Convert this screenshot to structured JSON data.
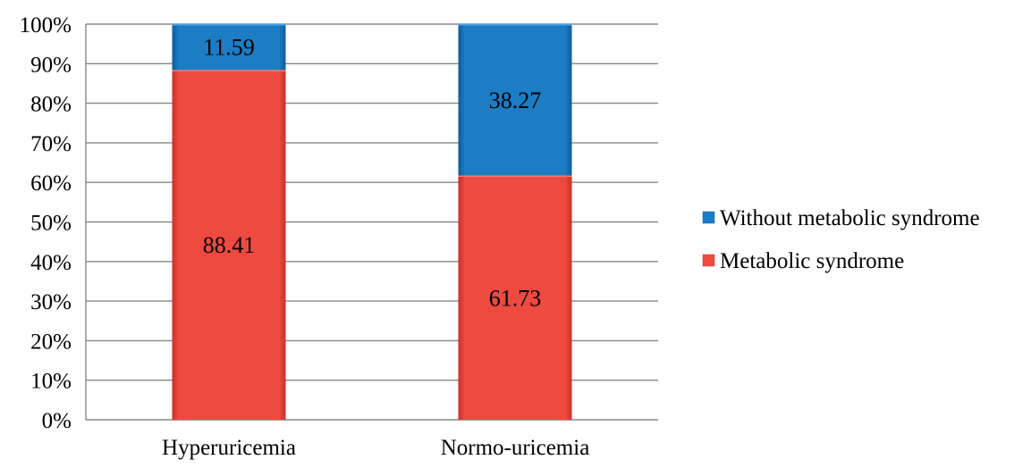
{
  "chart_data": {
    "type": "bar",
    "stacked": true,
    "percent_stacked": true,
    "categories": [
      "Hyperuricemia",
      "Normo-uricemia"
    ],
    "series": [
      {
        "name": "Metabolic syndrome",
        "values": [
          88.41,
          61.73
        ],
        "labels": [
          "88.41",
          "61.73"
        ],
        "color": "#e8443a"
      },
      {
        "name": "Without metabolic syndrome",
        "values": [
          11.59,
          38.27
        ],
        "labels": [
          "11.59",
          "38.27"
        ],
        "color": "#1a75bd"
      }
    ],
    "y_ticks": [
      "0%",
      "10%",
      "20%",
      "30%",
      "40%",
      "50%",
      "60%",
      "70%",
      "80%",
      "90%",
      "100%"
    ],
    "ylim": [
      0,
      100
    ],
    "grid": true,
    "legend": {
      "position": "right",
      "entries": [
        "Without metabolic syndrome",
        "Metabolic syndrome"
      ]
    }
  }
}
